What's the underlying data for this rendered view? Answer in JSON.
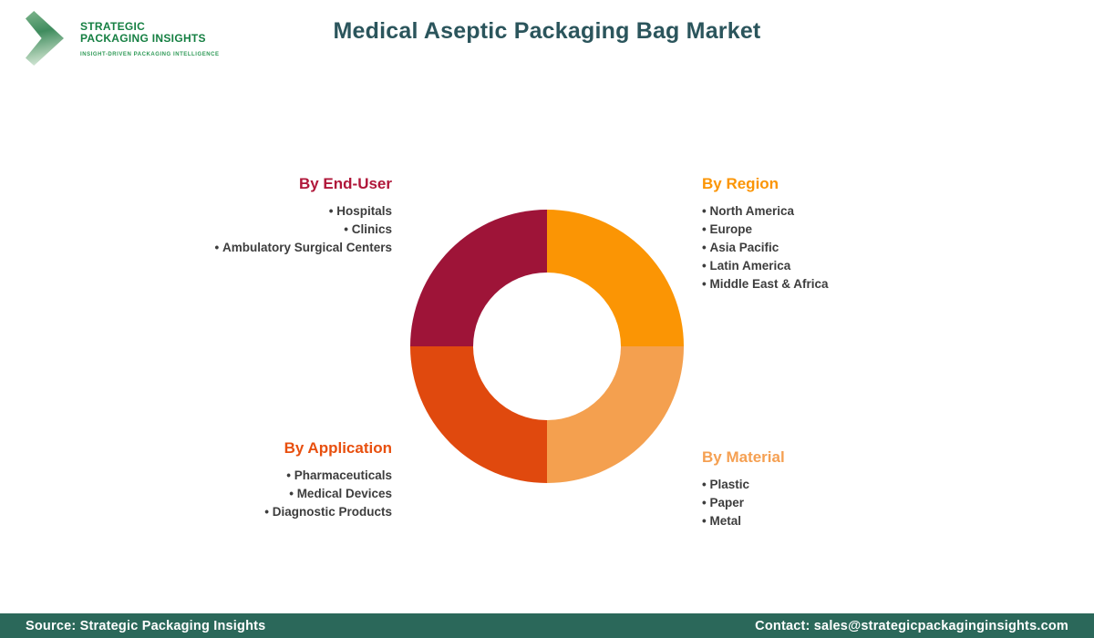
{
  "brand": {
    "name_line1": "STRATEGIC",
    "name_line2": "PACKAGING INSIGHTS",
    "tagline": "INSIGHT-DRIVEN PACKAGING INTELLIGENCE",
    "logo_icon": "chevron-right-icon",
    "brand_green": "#157f42"
  },
  "header": {
    "title": "Medical Aseptic Packaging Bag Market",
    "title_color": "#2b555c"
  },
  "chart_data": {
    "type": "pie",
    "donut": true,
    "title": "Medical Aseptic Packaging Bag Market",
    "legend_position": "none",
    "inner_radius_ratio": 0.54,
    "start_angle_deg": 0,
    "segments": [
      {
        "label": "By Region",
        "value": 25,
        "color": "#fb9504"
      },
      {
        "label": "By Material",
        "value": 25,
        "color": "#f4a04f"
      },
      {
        "label": "By Application",
        "value": 25,
        "color": "#e0490e"
      },
      {
        "label": "By End-User",
        "value": 25,
        "color": "#9e1438"
      }
    ]
  },
  "categories": {
    "end_user": {
      "title": "By End-User",
      "color": "#b0173a",
      "items": [
        "Hospitals",
        "Clinics",
        "Ambulatory Surgical Centers"
      ]
    },
    "region": {
      "title": "By Region",
      "color": "#fb9504",
      "items": [
        "North America",
        "Europe",
        "Asia Pacific",
        "Latin America",
        "Middle East & Africa"
      ]
    },
    "application": {
      "title": "By Application",
      "color": "#e8500f",
      "items": [
        "Pharmaceuticals",
        "Medical Devices",
        "Diagnostic Products"
      ]
    },
    "material": {
      "title": "By Material",
      "color": "#f5a052",
      "items": [
        "Plastic",
        "Paper",
        "Metal"
      ]
    }
  },
  "footer": {
    "source": "Source: Strategic Packaging Insights",
    "contact": "Contact: sales@strategicpackaginginsights.com",
    "bar_color": "#2b685a"
  }
}
